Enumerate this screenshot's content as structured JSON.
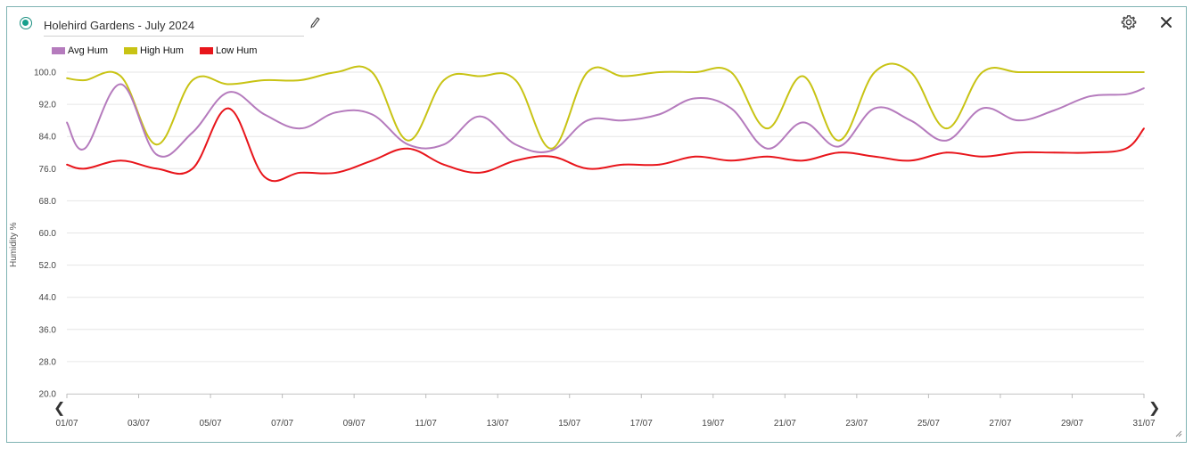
{
  "header": {
    "title_value": "Holehird Gardens - July 2024",
    "icons": [
      "radio-selected-icon",
      "pencil-icon",
      "gear-icon",
      "close-icon"
    ]
  },
  "colors": {
    "accent": "#16a08c",
    "avg": "#b57bbd",
    "high": "#c8c314",
    "low": "#e8151b",
    "grid": "#e6e6e6"
  },
  "chart_data": {
    "type": "line",
    "ylabel": "Humidity %",
    "ylim": [
      20,
      100
    ],
    "y_ticks": [
      "100.0",
      "92.0",
      "84.0",
      "76.0",
      "68.0",
      "60.0",
      "52.0",
      "44.0",
      "36.0",
      "28.0",
      "20.0"
    ],
    "x_ticks": [
      "01/07",
      "03/07",
      "05/07",
      "07/07",
      "09/07",
      "11/07",
      "13/07",
      "15/07",
      "17/07",
      "19/07",
      "21/07",
      "23/07",
      "25/07",
      "27/07",
      "29/07",
      "31/07"
    ],
    "legend": [
      "Avg Hum",
      "High Hum",
      "Low Hum"
    ],
    "legend_position": "top-left",
    "grid": true,
    "x": [
      1,
      1.5,
      2.5,
      3.5,
      4.5,
      5.5,
      6.5,
      7.5,
      8.5,
      9.5,
      10.5,
      11.5,
      12.5,
      13.5,
      14.5,
      15.5,
      16.5,
      17.5,
      18.5,
      19.5,
      20.5,
      21.5,
      22.5,
      23.5,
      24.5,
      25.5,
      26.5,
      27.5,
      28.5,
      29.5,
      30.5,
      31
    ],
    "series": [
      {
        "name": "Avg Hum",
        "values": [
          87.5,
          81,
          97,
          79.5,
          85,
          95,
          89.5,
          86,
          90,
          89.5,
          82,
          82,
          89,
          82,
          80.5,
          88,
          88,
          89.5,
          93.5,
          91,
          81,
          87.5,
          81.5,
          91,
          88,
          83,
          91,
          88,
          90.5,
          94,
          94.5,
          96
        ]
      },
      {
        "name": "High Hum",
        "values": [
          98.5,
          98,
          99,
          82,
          98,
          97,
          98,
          98,
          100,
          100,
          83,
          98,
          99,
          98,
          81,
          100,
          99,
          100,
          100,
          100,
          86,
          99,
          83,
          100,
          100,
          86,
          100,
          100,
          100,
          100,
          100,
          100
        ]
      },
      {
        "name": "Low Hum",
        "values": [
          77,
          76,
          78,
          76,
          76,
          91,
          74,
          75,
          75,
          78,
          81,
          77,
          75,
          78,
          79,
          76,
          77,
          77,
          79,
          78,
          79,
          78,
          80,
          79,
          78,
          80,
          79,
          80,
          80,
          80,
          81,
          86
        ]
      }
    ]
  }
}
